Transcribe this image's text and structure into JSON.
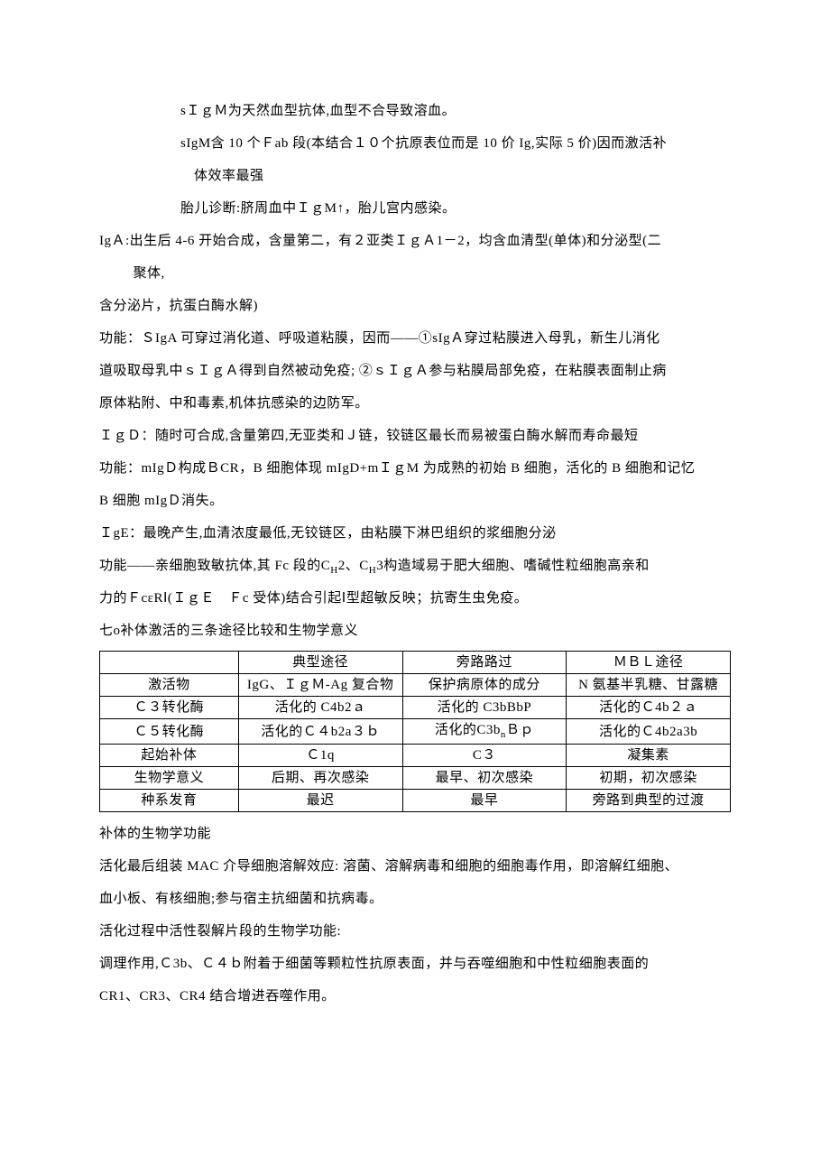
{
  "para": {
    "l1": "sＩｇＭ为天然血型抗体,血型不合导致溶血。",
    "l2": "sIgM含 10 个Ｆab 段(本结合１０个抗原表位而是 10 价 Ig,实际 5 价)因而激活补",
    "l2b": "体效率最强",
    "l3": "胎儿诊断:脐周血中ＩｇM↑，胎儿宫内感染。",
    "iga1": "IgＡ:出生后 4-6 开始合成，含量第二，有２亚类ＩｇＡ1－2，均含血清型(单体)和分泌型(二",
    "iga1b": "聚体,",
    "iga2": "含分泌片，抗蛋白酶水解)",
    "iga3": "功能：ＳIgA 可穿过消化道、呼吸道粘膜，因而——①sIgＡ穿过粘膜进入母乳，新生儿消化",
    "iga4": "道吸取母乳中ｓＩｇＡ得到自然被动免疫; ②ｓＩｇＡ参与粘膜局部免疫，在粘膜表面制止病",
    "iga5": "原体粘附、中和毒素,机体抗感染的边防军。",
    "igd1": "ＩｇＤ：随时可合成,含量第四,无亚类和Ｊ链，铰链区最长而易被蛋白酶水解而寿命最短",
    "igd2": "功能：mIgＤ构成ＢCR，B 细胞体现 mIgD+mＩｇM 为成熟的初始 B 细胞，活化的 B 细胞和记忆",
    "igd3": "B 细胞 mIgＤ消失。",
    "ige1": "ＩgE：最晚产生,血清浓度最低,无铰链区，由粘膜下淋巴组织的浆细胞分泌",
    "ige2a": "功能——亲细胞致敏抗体,其 Fc 段的C",
    "ige2b": "2、C",
    "ige2c": "3构造域易于肥大细胞、嗜碱性粒细胞高亲和",
    "ige3": "力的ＦcεRⅠ(ＩｇＥ　Ｆc 受体)结合引起Ⅰ型超敏反映；抗寄生虫免疫。",
    "seven": "七o补体激活的三条途径比较和生物学意义",
    "comp1": "补体的生物学功能",
    "comp2": "活化最后组装 MAC 介导细胞溶解效应: 溶菌、溶解病毒和细胞的细胞毒作用，即溶解红细胞、",
    "comp3": "血小板、有核细胞;参与宿主抗细菌和抗病毒。",
    "comp4": "活化过程中活性裂解片段的生物学功能:",
    "comp5": "调理作用,Ｃ3b、Ｃ４ｂ附着于细菌等颗粒性抗原表面，并与吞噬细胞和中性粒细胞表面的",
    "comp6": "CR1、CR3、CR4 结合增进吞噬作用。"
  },
  "table": {
    "header": {
      "c0": "",
      "c1": "典型途径",
      "c2": "旁路路过",
      "c3": "ＭＢＬ途径"
    },
    "rows": [
      {
        "c0": "激活物",
        "c1": "IgG、ＩｇＭ-Ag 复合物",
        "c2": "保护病原体的成分",
        "c3": "N 氨基半乳糖、甘露糖"
      },
      {
        "c0": "Ｃ３转化酶",
        "c1": "活化的 C4b2ａ",
        "c2": "活化的 C3bBbP",
        "c3": "活化的Ｃ4b２ａ"
      },
      {
        "c0": "Ｃ５转化酶",
        "c1": "活化的Ｃ４b2a３ｂ",
        "c2_a": "活化的C3b",
        "c2_b": "Ｂｐ",
        "c3": "活化的Ｃ4b2a3b"
      },
      {
        "c0": "起始补体",
        "c1": "Ｃ1q",
        "c2": "C３",
        "c3": "凝集素"
      },
      {
        "c0": "生物学意义",
        "c1": "后期、再次感染",
        "c2": "最早、初次感染",
        "c3": "初期，初次感染"
      },
      {
        "c0": "种系发育",
        "c1": "最迟",
        "c2": "最早",
        "c3": "旁路到典型的过渡"
      }
    ]
  }
}
